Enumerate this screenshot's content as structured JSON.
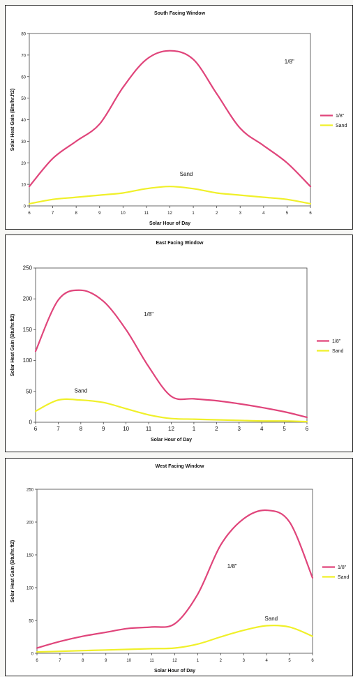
{
  "chart_data": [
    {
      "type": "line",
      "title": "South Facing Window",
      "xlabel": "Solar Hour of Day",
      "ylabel": "Solar Heat Gain (Btu/hr.ft2)",
      "x": [
        6,
        7,
        8,
        9,
        10,
        11,
        12,
        13,
        14,
        15,
        16,
        17,
        18
      ],
      "xtick_labels": [
        "6",
        "7",
        "8",
        "9",
        "10",
        "11",
        "12",
        "1",
        "2",
        "3",
        "4",
        "5",
        "6"
      ],
      "yticks": [
        0,
        10,
        20,
        30,
        40,
        50,
        60,
        70,
        80
      ],
      "ylim": [
        0,
        80
      ],
      "series": [
        {
          "name": "1/8\"",
          "color": "#e0457b",
          "values": [
            9,
            22,
            30,
            38,
            55,
            68,
            72,
            68,
            52,
            36,
            28,
            20,
            9
          ]
        },
        {
          "name": "Sand",
          "color": "#f0f02a",
          "values": [
            1,
            3,
            4,
            5,
            6,
            8,
            9,
            8,
            6,
            5,
            4,
            3,
            1
          ]
        }
      ],
      "annotations": [
        {
          "text": "1/8\"",
          "x": 17.1,
          "y": 66
        },
        {
          "text": "Sand",
          "x": 12.7,
          "y": 14
        }
      ],
      "legend": "right",
      "grid": false
    },
    {
      "type": "line",
      "title": "East Facing Window",
      "xlabel": "Solar Hour of Day",
      "ylabel": "Solar Heat Gain (Btu/hr.ft2)",
      "x": [
        6,
        7,
        8,
        9,
        10,
        11,
        12,
        13,
        14,
        15,
        16,
        17,
        18
      ],
      "xtick_labels": [
        "6",
        "7",
        "8",
        "9",
        "10",
        "11",
        "12",
        "1",
        "2",
        "3",
        "4",
        "5",
        "6"
      ],
      "yticks": [
        0,
        50,
        100,
        150,
        200,
        250
      ],
      "ylim": [
        0,
        250
      ],
      "series": [
        {
          "name": "1/8\"",
          "color": "#e0457b",
          "values": [
            115,
            198,
            214,
            196,
            150,
            90,
            42,
            38,
            35,
            30,
            24,
            17,
            8
          ]
        },
        {
          "name": "Sand",
          "color": "#f0f02a",
          "values": [
            18,
            36,
            36,
            32,
            22,
            12,
            6,
            5,
            4,
            3,
            2,
            2,
            1
          ]
        }
      ],
      "annotations": [
        {
          "text": "1/8\"",
          "x": 11.0,
          "y": 172
        },
        {
          "text": "Sand",
          "x": 8.0,
          "y": 48
        }
      ],
      "legend": "right",
      "grid": false
    },
    {
      "type": "line",
      "title": "West Facing Window",
      "xlabel": "Solar Hour of Day",
      "ylabel": "Solar Heat Gain (Btu/hr.ft2)",
      "x": [
        6,
        7,
        8,
        9,
        10,
        11,
        12,
        13,
        14,
        15,
        16,
        17,
        18
      ],
      "xtick_labels": [
        "6",
        "7",
        "8",
        "9",
        "10",
        "11",
        "12",
        "1",
        "2",
        "3",
        "4",
        "5",
        "6"
      ],
      "yticks": [
        0,
        50,
        100,
        150,
        200,
        250
      ],
      "ylim": [
        0,
        250
      ],
      "series": [
        {
          "name": "1/8\"",
          "color": "#e0457b",
          "values": [
            8,
            18,
            26,
            32,
            38,
            40,
            45,
            90,
            165,
            205,
            218,
            200,
            115
          ]
        },
        {
          "name": "Sand",
          "color": "#f0f02a",
          "values": [
            2,
            3,
            4,
            5,
            6,
            7,
            8,
            14,
            25,
            35,
            42,
            40,
            26
          ]
        }
      ],
      "annotations": [
        {
          "text": "1/8\"",
          "x": 14.5,
          "y": 130
        },
        {
          "text": "Sand",
          "x": 16.2,
          "y": 50
        }
      ],
      "legend": "right",
      "grid": false
    }
  ]
}
